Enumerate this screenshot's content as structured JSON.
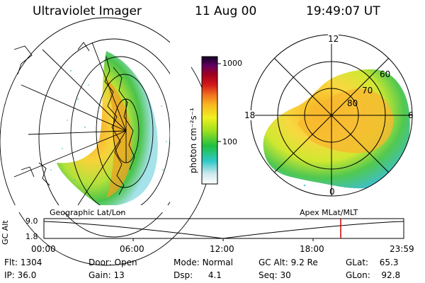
{
  "header": {
    "instrument": "Ultraviolet Imager",
    "date": "11 Aug 00",
    "time": "19:49:07 UT"
  },
  "colorbar": {
    "unit_label": "photon cm⁻²s⁻¹",
    "ticks": [
      "1000",
      "100"
    ]
  },
  "polar_plot": {
    "mlt_labels": [
      "12",
      "18",
      "6",
      "0"
    ],
    "lat_labels": [
      "60",
      "70",
      "80"
    ]
  },
  "panels": {
    "left_caption": "Geographic Lat/Lon",
    "right_caption": "Apex MLat/MLT"
  },
  "altitude_plot": {
    "ylabel": "GC Alt",
    "ytick_top": "9.0",
    "ytick_bottom": "1.8",
    "xticks": [
      "00:00",
      "06:00",
      "12:00",
      "18:00",
      "23:59"
    ],
    "marker_color": "#cc0000"
  },
  "info": {
    "flt_label": "Flt:",
    "flt_value": "1304",
    "ip_label": "IP:",
    "ip_value": "36.0",
    "door_label": "Door:",
    "door_value": "Open",
    "gain_label": "Gain:",
    "gain_value": "13",
    "mode_label": "Mode:",
    "mode_value": "Normal",
    "dsp_label": "Dsp:",
    "dsp_value": "4.1",
    "gcalt_label": "GC Alt:",
    "gcalt_value": "9.2 Re",
    "seq_label": "Seq:",
    "seq_value": "30",
    "glat_label": "GLat:",
    "glat_value": "65.3",
    "glon_label": "GLon:",
    "glon_value": "92.8"
  }
}
